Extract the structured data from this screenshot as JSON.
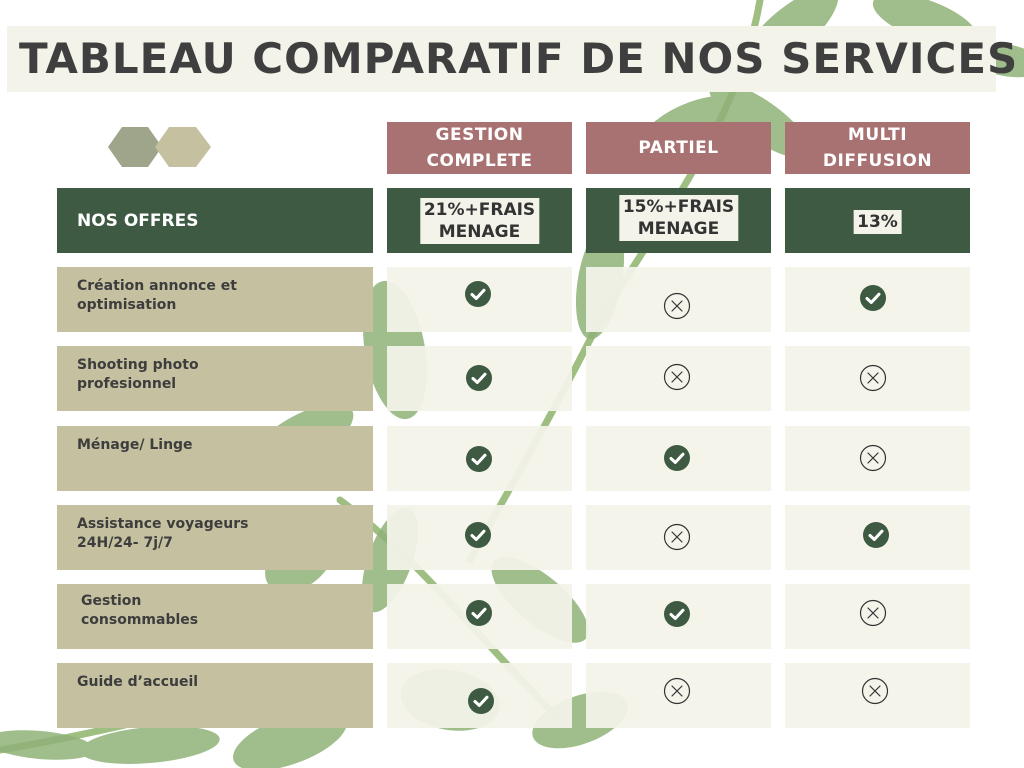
{
  "title": "TABLEAU COMPARATIF DE NOS SERVICES",
  "columns": [
    {
      "line1": "GESTION",
      "line2": "COMPLETE"
    },
    {
      "line1": "PARTIEL",
      "line2": ""
    },
    {
      "line1": "MULTI",
      "line2": "DIFFUSION"
    }
  ],
  "offers": {
    "label": "NOS OFFRES",
    "prices": [
      {
        "line1": "21%+FRAIS",
        "line2": "MENAGE"
      },
      {
        "line1": "15%+FRAIS",
        "line2": "MENAGE"
      },
      {
        "line1": "13%",
        "line2": ""
      }
    ]
  },
  "rows": [
    {
      "line1": "Création annonce et",
      "line2": "optimisation",
      "marks": [
        "check",
        "cross",
        "check"
      ]
    },
    {
      "line1": "Shooting photo",
      "line2": "profesionnel",
      "marks": [
        "check",
        "cross",
        "cross"
      ]
    },
    {
      "line1": "Ménage/ Linge",
      "line2": "",
      "marks": [
        "check",
        "check",
        "cross"
      ]
    },
    {
      "line1": "Assistance voyageurs",
      "line2": "24H/24- 7j/7",
      "marks": [
        "check",
        "cross",
        "check"
      ]
    },
    {
      "line1": "Gestion",
      "line2": "consommables",
      "marks": [
        "check",
        "check",
        "cross"
      ]
    },
    {
      "line1": "Guide d’accueil",
      "line2": "",
      "marks": [
        "check",
        "cross",
        "cross"
      ]
    }
  ],
  "colors": {
    "header_rose": "#a97272",
    "offer_green": "#3e5a42",
    "label_khaki": "#c4c0a0",
    "cell_cream": "#f3f3ea",
    "check_green": "#3e5a42",
    "cross_dark": "#333333"
  },
  "icons": {
    "check": "check-circle-icon",
    "cross": "cross-circle-icon",
    "decor": "hexagon-icon"
  }
}
